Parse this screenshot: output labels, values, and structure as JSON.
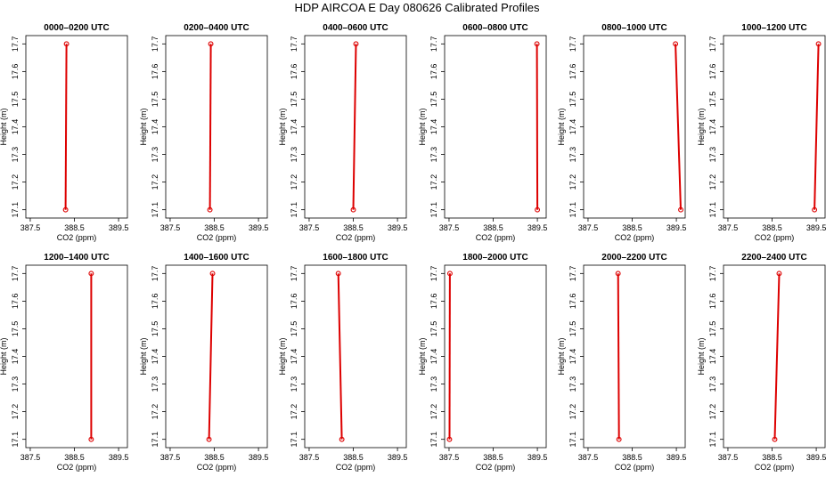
{
  "figure": {
    "title": "HDP AIRCOA E  Day 080626  Calibrated Profiles"
  },
  "colors": {
    "line": "#dd0000",
    "axis": "#000000",
    "background": "#ffffff"
  },
  "chart_data": [
    {
      "type": "line",
      "title": "0000–0200 UTC",
      "xlabel": "CO2 (ppm)",
      "ylabel": "Height (m)",
      "xlim": [
        387.4,
        389.7
      ],
      "ylim": [
        17.07,
        17.73
      ],
      "xticks": [
        "387.5",
        "388.5",
        "389.5"
      ],
      "yticks": [
        "17.1",
        "17.2",
        "17.3",
        "17.4",
        "17.5",
        "17.6",
        "17.7"
      ],
      "x": [
        388.3,
        388.32
      ],
      "y": [
        17.1,
        17.7
      ],
      "grid": false
    },
    {
      "type": "line",
      "title": "0200–0400 UTC",
      "xlabel": "CO2 (ppm)",
      "ylabel": "Height (m)",
      "xlim": [
        387.4,
        389.7
      ],
      "ylim": [
        17.07,
        17.73
      ],
      "xticks": [
        "387.5",
        "388.5",
        "389.5"
      ],
      "yticks": [
        "17.1",
        "17.2",
        "17.3",
        "17.4",
        "17.5",
        "17.6",
        "17.7"
      ],
      "x": [
        388.4,
        388.42
      ],
      "y": [
        17.1,
        17.7
      ],
      "grid": false
    },
    {
      "type": "line",
      "title": "0400–0600 UTC",
      "xlabel": "CO2 (ppm)",
      "ylabel": "Height (m)",
      "xlim": [
        387.4,
        389.7
      ],
      "ylim": [
        17.07,
        17.73
      ],
      "xticks": [
        "387.5",
        "388.5",
        "389.5"
      ],
      "yticks": [
        "17.1",
        "17.2",
        "17.3",
        "17.4",
        "17.5",
        "17.6",
        "17.7"
      ],
      "x": [
        388.5,
        388.56
      ],
      "y": [
        17.1,
        17.7
      ],
      "grid": false
    },
    {
      "type": "line",
      "title": "0600–0800 UTC",
      "xlabel": "CO2 (ppm)",
      "ylabel": "Height (m)",
      "xlim": [
        387.4,
        389.7
      ],
      "ylim": [
        17.07,
        17.73
      ],
      "xticks": [
        "387.5",
        "388.5",
        "389.5"
      ],
      "yticks": [
        "17.1",
        "17.2",
        "17.3",
        "17.4",
        "17.5",
        "17.6",
        "17.7"
      ],
      "x": [
        389.5,
        389.49
      ],
      "y": [
        17.1,
        17.7
      ],
      "grid": false
    },
    {
      "type": "line",
      "title": "0800–1000 UTC",
      "xlabel": "CO2 (ppm)",
      "ylabel": "Height (m)",
      "xlim": [
        387.4,
        389.7
      ],
      "ylim": [
        17.07,
        17.73
      ],
      "xticks": [
        "387.5",
        "388.5",
        "389.5"
      ],
      "yticks": [
        "17.1",
        "17.2",
        "17.3",
        "17.4",
        "17.5",
        "17.6",
        "17.7"
      ],
      "x": [
        389.6,
        389.48
      ],
      "y": [
        17.1,
        17.7
      ],
      "grid": false
    },
    {
      "type": "line",
      "title": "1000–1200 UTC",
      "xlabel": "CO2 (ppm)",
      "ylabel": "Height (m)",
      "xlim": [
        387.4,
        389.7
      ],
      "ylim": [
        17.07,
        17.73
      ],
      "xticks": [
        "387.5",
        "388.5",
        "389.5"
      ],
      "yticks": [
        "17.1",
        "17.2",
        "17.3",
        "17.4",
        "17.5",
        "17.6",
        "17.7"
      ],
      "x": [
        389.46,
        389.55
      ],
      "y": [
        17.1,
        17.7
      ],
      "grid": false
    },
    {
      "type": "line",
      "title": "1200–1400 UTC",
      "xlabel": "CO2 (ppm)",
      "ylabel": "Height (m)",
      "xlim": [
        387.4,
        389.7
      ],
      "ylim": [
        17.07,
        17.73
      ],
      "xticks": [
        "387.5",
        "388.5",
        "389.5"
      ],
      "yticks": [
        "17.1",
        "17.2",
        "17.3",
        "17.4",
        "17.5",
        "17.6",
        "17.7"
      ],
      "x": [
        388.88,
        388.88
      ],
      "y": [
        17.1,
        17.7
      ],
      "grid": false
    },
    {
      "type": "line",
      "title": "1400–1600 UTC",
      "xlabel": "CO2 (ppm)",
      "ylabel": "Height (m)",
      "xlim": [
        387.4,
        389.7
      ],
      "ylim": [
        17.07,
        17.73
      ],
      "xticks": [
        "387.5",
        "388.5",
        "389.5"
      ],
      "yticks": [
        "17.1",
        "17.2",
        "17.3",
        "17.4",
        "17.5",
        "17.6",
        "17.7"
      ],
      "x": [
        388.38,
        388.46
      ],
      "y": [
        17.1,
        17.7
      ],
      "grid": false
    },
    {
      "type": "line",
      "title": "1600–1800 UTC",
      "xlabel": "CO2 (ppm)",
      "ylabel": "Height (m)",
      "xlim": [
        387.4,
        389.7
      ],
      "ylim": [
        17.07,
        17.73
      ],
      "xticks": [
        "387.5",
        "388.5",
        "389.5"
      ],
      "yticks": [
        "17.1",
        "17.2",
        "17.3",
        "17.4",
        "17.5",
        "17.6",
        "17.7"
      ],
      "x": [
        388.24,
        388.16
      ],
      "y": [
        17.1,
        17.7
      ],
      "grid": false
    },
    {
      "type": "line",
      "title": "1800–2000 UTC",
      "xlabel": "CO2 (ppm)",
      "ylabel": "Height (m)",
      "xlim": [
        387.4,
        389.7
      ],
      "ylim": [
        17.07,
        17.73
      ],
      "xticks": [
        "387.5",
        "388.5",
        "389.5"
      ],
      "yticks": [
        "17.1",
        "17.2",
        "17.3",
        "17.4",
        "17.5",
        "17.6",
        "17.7"
      ],
      "x": [
        387.51,
        387.52
      ],
      "y": [
        17.1,
        17.7
      ],
      "grid": false
    },
    {
      "type": "line",
      "title": "2000–2200 UTC",
      "xlabel": "CO2 (ppm)",
      "ylabel": "Height (m)",
      "xlim": [
        387.4,
        389.7
      ],
      "ylim": [
        17.07,
        17.73
      ],
      "xticks": [
        "387.5",
        "388.5",
        "389.5"
      ],
      "yticks": [
        "17.1",
        "17.2",
        "17.3",
        "17.4",
        "17.5",
        "17.6",
        "17.7"
      ],
      "x": [
        388.2,
        388.18
      ],
      "y": [
        17.1,
        17.7
      ],
      "grid": false
    },
    {
      "type": "line",
      "title": "2200–2400 UTC",
      "xlabel": "CO2 (ppm)",
      "ylabel": "Height (m)",
      "xlim": [
        387.4,
        389.7
      ],
      "ylim": [
        17.07,
        17.73
      ],
      "xticks": [
        "387.5",
        "388.5",
        "389.5"
      ],
      "yticks": [
        "17.1",
        "17.2",
        "17.3",
        "17.4",
        "17.5",
        "17.6",
        "17.7"
      ],
      "x": [
        388.56,
        388.66
      ],
      "y": [
        17.1,
        17.7
      ],
      "grid": false
    }
  ]
}
